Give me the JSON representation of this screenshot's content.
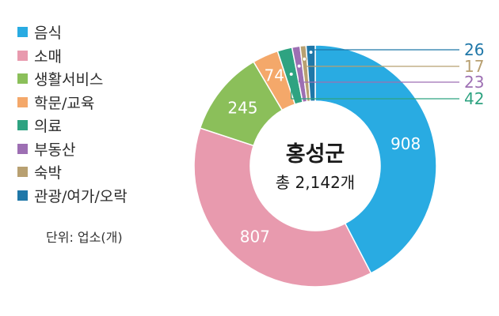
{
  "legend": [
    {
      "label": "음식",
      "color": "#29abe2"
    },
    {
      "label": "소매",
      "color": "#e89aae"
    },
    {
      "label": "생활서비스",
      "color": "#8bbf5a"
    },
    {
      "label": "학문/교육",
      "color": "#f4a86a"
    },
    {
      "label": "의료",
      "color": "#2ea381"
    },
    {
      "label": "부동산",
      "color": "#9d6fb3"
    },
    {
      "label": "숙박",
      "color": "#b8a071"
    },
    {
      "label": "관광/여가/오락",
      "color": "#1f77a8"
    }
  ],
  "unit_note": "단위: 업소(개)",
  "chart_data": {
    "type": "pie",
    "donut": true,
    "title": "홍성군",
    "subtitle": "총 2,142개",
    "categories": [
      "음식",
      "소매",
      "생활서비스",
      "학문/교육",
      "의료",
      "부동산",
      "숙박",
      "관광/여가/오락"
    ],
    "values": [
      908,
      807,
      245,
      74,
      42,
      23,
      17,
      26
    ],
    "colors": [
      "#29abe2",
      "#e89aae",
      "#8bbf5a",
      "#f4a86a",
      "#2ea381",
      "#9d6fb3",
      "#b8a071",
      "#1f77a8"
    ],
    "inner_labels": [
      "908",
      "807",
      "245",
      "74",
      null,
      null,
      null,
      null
    ],
    "callout_labels": [
      null,
      null,
      null,
      null,
      "42",
      "23",
      "17",
      "26"
    ],
    "start": "12 o'clock",
    "direction": "clockwise"
  }
}
